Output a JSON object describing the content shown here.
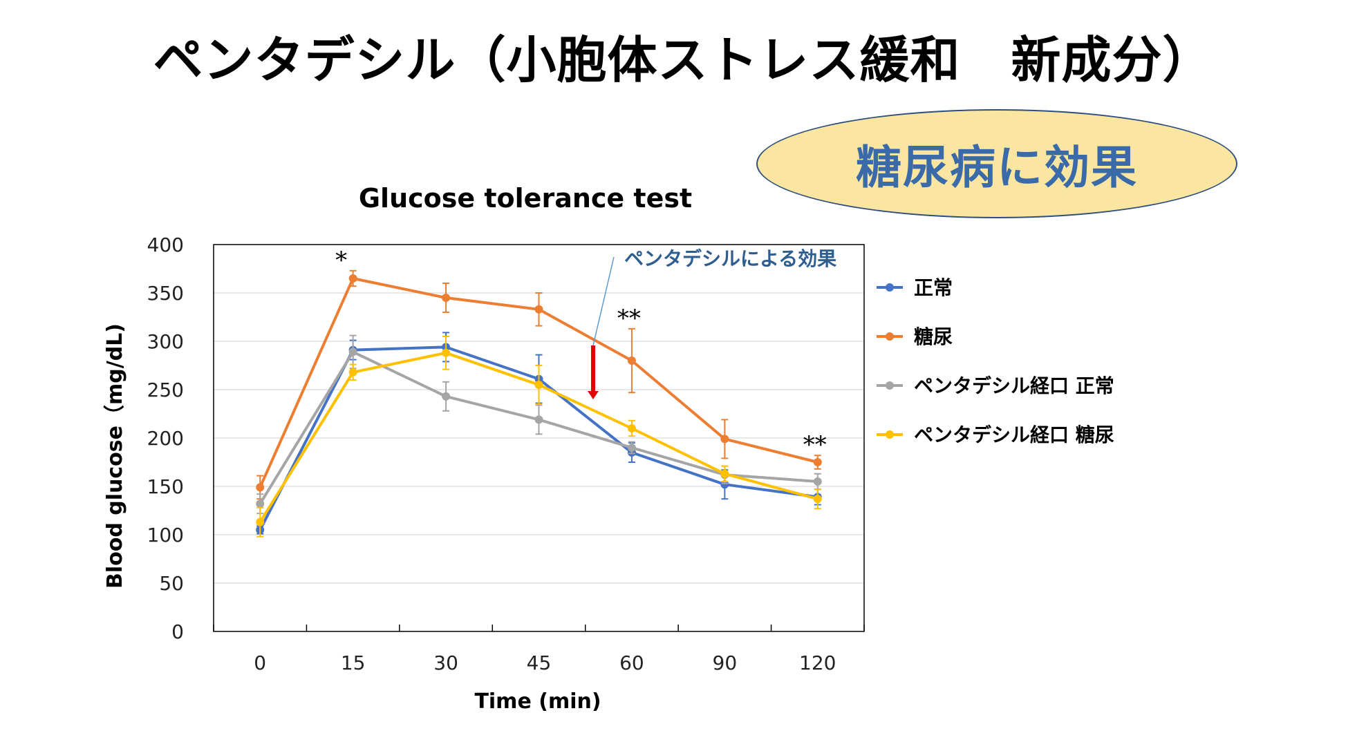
{
  "page_title": "ペンタデシル（小胞体ストレス緩和　新成分）",
  "badge_text": "糖尿病に効果",
  "chart_data": {
    "type": "line",
    "title": "Glucose tolerance test",
    "xlabel": "Time (min)",
    "ylabel": "Blood glucose（mg/dL)",
    "categories": [
      "0",
      "15",
      "30",
      "45",
      "60",
      "90",
      "120"
    ],
    "ylim": [
      0,
      400
    ],
    "yticks": [
      0,
      50,
      100,
      150,
      200,
      250,
      300,
      350,
      400
    ],
    "grid": true,
    "legend_position": "right",
    "series": [
      {
        "name": "正常",
        "color": "#4472c4",
        "values": [
          105,
          291,
          294,
          261,
          185,
          152,
          139
        ],
        "errors": [
          4,
          10,
          15,
          25,
          10,
          15,
          8
        ]
      },
      {
        "name": "糖尿",
        "color": "#ed7d31",
        "values": [
          149,
          365,
          345,
          333,
          280,
          199,
          175
        ],
        "errors": [
          12,
          8,
          15,
          17,
          33,
          20,
          7
        ]
      },
      {
        "name": "ペンタデシル経口 正常",
        "color": "#a5a5a5",
        "values": [
          132,
          289,
          243,
          219,
          190,
          162,
          155
        ],
        "errors": [
          10,
          17,
          15,
          15,
          6,
          9,
          8
        ]
      },
      {
        "name": "ペンタデシル経口 糖尿",
        "color": "#ffc000",
        "values": [
          113,
          268,
          288,
          255,
          210,
          163,
          137
        ],
        "errors": [
          15,
          8,
          17,
          20,
          8,
          8,
          10
        ]
      }
    ],
    "annotations": [
      {
        "text": "ペンタデシルによる効果"
      },
      {
        "text": "*",
        "category": "15"
      },
      {
        "text": "**",
        "category": "60"
      },
      {
        "text": "**",
        "category": "120"
      }
    ]
  }
}
